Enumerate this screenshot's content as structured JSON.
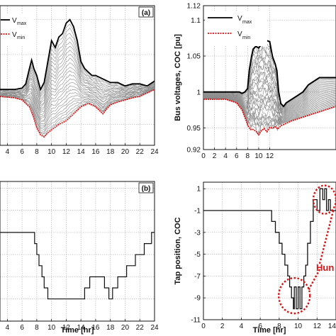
{
  "chart_data": [
    {
      "id": "a",
      "type": "line",
      "panel_label": "(a)",
      "xlim": [
        3,
        24
      ],
      "xticks": [
        "4",
        "6",
        "8",
        "10",
        "12",
        "14",
        "16",
        "18",
        "20",
        "22",
        "24"
      ],
      "ylim": [
        0.92,
        1.12
      ],
      "grid": true,
      "legend": {
        "position": "top-left",
        "entries": [
          {
            "main": "V",
            "sub": "max",
            "color": "#000000",
            "style": "solid"
          },
          {
            "main": "V",
            "sub": "min",
            "color": "#dd1111",
            "style": "dotted"
          }
        ]
      },
      "series": [
        {
          "name": "Vmax",
          "color": "#000000",
          "x": [
            3,
            5,
            6,
            6.5,
            7,
            7.3,
            7.6,
            8,
            8.5,
            9,
            9.5,
            10,
            10.5,
            11,
            11.5,
            12,
            12.5,
            13,
            13.5,
            14,
            14.5,
            15,
            15.5,
            16,
            17,
            18,
            19,
            20,
            21,
            22,
            23,
            24
          ],
          "y": [
            1.0,
            1.0,
            1.002,
            1.008,
            1.03,
            1.042,
            1.03,
            1.02,
            1.0,
            1.01,
            1.04,
            1.07,
            1.06,
            1.075,
            1.08,
            1.095,
            1.1,
            1.09,
            1.07,
            1.04,
            1.03,
            1.025,
            1.02,
            1.02,
            1.015,
            1.01,
            1.01,
            1.005,
            1.008,
            1.008,
            1.005,
            1.012
          ]
        },
        {
          "name": "Vmin",
          "color": "#dd1111",
          "x": [
            3,
            5,
            6,
            7,
            7.5,
            8,
            8.5,
            9,
            9.5,
            10,
            11,
            12,
            13,
            14,
            15,
            16,
            17,
            17.5,
            18,
            19,
            20,
            21,
            22,
            23,
            24
          ],
          "y": [
            0.99,
            0.988,
            0.985,
            0.975,
            0.962,
            0.945,
            0.935,
            0.932,
            0.938,
            0.942,
            0.95,
            0.955,
            0.965,
            0.975,
            0.98,
            0.975,
            0.965,
            0.972,
            0.978,
            0.982,
            0.985,
            0.988,
            0.99,
            0.995,
            1.0
          ]
        }
      ]
    },
    {
      "id": "a_right",
      "type": "line",
      "xlim": [
        0,
        24
      ],
      "xticks": [
        "0",
        "2",
        "4",
        "6",
        "8",
        "10",
        "12"
      ],
      "ylim": [
        0.92,
        1.12
      ],
      "yticks": [
        "1.12",
        "1.1",
        "1.05",
        "1",
        "0.95",
        "0.92"
      ],
      "ylabel": "Bus voltages, COC [pu]",
      "grid": true,
      "legend": {
        "position": "top-left",
        "entries": [
          {
            "main": "V",
            "sub": "max",
            "color": "#000000",
            "style": "solid"
          },
          {
            "main": "V",
            "sub": "min",
            "color": "#dd1111",
            "style": "dotted"
          }
        ]
      },
      "series": [
        {
          "name": "Vmax",
          "color": "#000000",
          "x": [
            0,
            2,
            4,
            6,
            6.5,
            7,
            7.5,
            8,
            8.3,
            8.7,
            9,
            9.5,
            10,
            10.5,
            11,
            11.5,
            12,
            12.5,
            13,
            13.3,
            13.6,
            14,
            14.5,
            15,
            16,
            17,
            18,
            19,
            20,
            21,
            22,
            23,
            24
          ],
          "y": [
            1.0,
            1.0,
            1.0,
            1.0,
            1.0,
            0.998,
            1.0,
            1.005,
            1.03,
            1.05,
            1.06,
            1.065,
            1.063,
            1.065,
            1.068,
            1.07,
            1.068,
            1.05,
            1.04,
            1.03,
            1.0,
            0.985,
            0.98,
            0.985,
            0.99,
            0.995,
            1.0,
            1.01,
            1.015,
            1.02,
            1.02,
            1.02,
            1.02
          ]
        },
        {
          "name": "Vmin",
          "color": "#dd1111",
          "x": [
            0,
            2,
            4,
            6,
            6.5,
            7,
            7.5,
            8,
            8.5,
            9,
            9.5,
            10,
            10.5,
            11,
            11.5,
            12,
            12.5,
            13,
            13.5,
            14,
            16,
            18,
            20,
            22,
            24
          ],
          "y": [
            0.99,
            0.99,
            0.99,
            0.985,
            0.98,
            0.975,
            0.965,
            0.955,
            0.948,
            0.95,
            0.945,
            0.942,
            0.948,
            0.95,
            0.945,
            0.95,
            0.948,
            0.95,
            0.95,
            0.955,
            0.96,
            0.965,
            0.97,
            0.975,
            0.98
          ]
        }
      ]
    },
    {
      "id": "b",
      "type": "line",
      "panel_label": "(b)",
      "xlim": [
        3,
        24
      ],
      "xticks": [
        "4",
        "6",
        "8",
        "10",
        "12",
        "14",
        "16",
        "18",
        "20",
        "22",
        "24"
      ],
      "ylim": [
        -11,
        1.6
      ],
      "xlabel": "Time [hr]",
      "grid": true,
      "series": [
        {
          "color": "#000000",
          "x": [
            3,
            7.7,
            7.7,
            8.0,
            8.0,
            8.3,
            8.3,
            8.7,
            8.7,
            9.0,
            9.0,
            9.5,
            9.5,
            14.5,
            14.5,
            15.2,
            15.2,
            17.2,
            17.2,
            17.8,
            17.8,
            18.3,
            18.3,
            19.0,
            19.0,
            20.2,
            20.2,
            21.4,
            21.4,
            22.6,
            22.6,
            23.6,
            23.6,
            24
          ],
          "y": [
            -3,
            -3,
            -4,
            -4,
            -5,
            -5,
            -6,
            -6,
            -7,
            -7,
            -8,
            -8,
            -9,
            -9,
            -8,
            -8,
            -7,
            -7,
            -8,
            -8,
            -9,
            -9,
            -8,
            -8,
            -7,
            -7,
            -6,
            -6,
            -5,
            -5,
            -4,
            -4,
            -3,
            -3
          ]
        }
      ]
    },
    {
      "id": "b_right",
      "type": "line",
      "xlim": [
        0,
        14
      ],
      "xticks": [
        "0",
        "2",
        "4",
        "6",
        "8",
        "10",
        "12",
        "14"
      ],
      "ylim": [
        -11,
        1.6
      ],
      "yticks": [
        "1",
        "-1",
        "-3",
        "-5",
        "-7",
        "-9",
        "-11"
      ],
      "ylabel": "Tap position, COC",
      "xlabel": "Time [hr]",
      "annotation": "Hun",
      "grid": true,
      "series": [
        {
          "color": "#000000",
          "x": [
            0,
            7.2,
            7.2,
            7.6,
            7.6,
            8.0,
            8.0,
            8.3,
            8.3,
            8.6,
            8.6,
            8.9,
            8.9,
            9.1,
            9.1,
            9.3,
            9.3,
            9.5,
            9.5,
            9.6,
            9.6,
            9.8,
            9.8,
            10.0,
            10.0,
            10.2,
            10.2,
            10.4,
            10.4,
            10.6,
            10.6,
            10.8,
            10.8,
            11.0,
            11.0,
            11.3,
            11.3,
            11.6,
            11.6,
            12.0,
            12.0,
            12.3,
            12.3,
            12.6,
            12.6,
            12.8,
            12.8,
            13.0,
            13.0,
            13.2,
            13.2,
            13.4,
            13.4,
            14
          ],
          "y": [
            -1,
            -1,
            -2,
            -2,
            -3,
            -3,
            -4,
            -4,
            -5,
            -5,
            -6,
            -6,
            -7,
            -7,
            -8,
            -8,
            -9,
            -9,
            -10,
            -10,
            -8,
            -8,
            -10,
            -10,
            -8,
            -8,
            -10,
            -10,
            -8,
            -8,
            -7,
            -7,
            -6,
            -6,
            -4,
            -4,
            -2,
            -2,
            0,
            0,
            -1,
            -1,
            1,
            1,
            0,
            0,
            1,
            1,
            -1,
            -1,
            0,
            0,
            -1,
            -1
          ]
        }
      ]
    }
  ]
}
